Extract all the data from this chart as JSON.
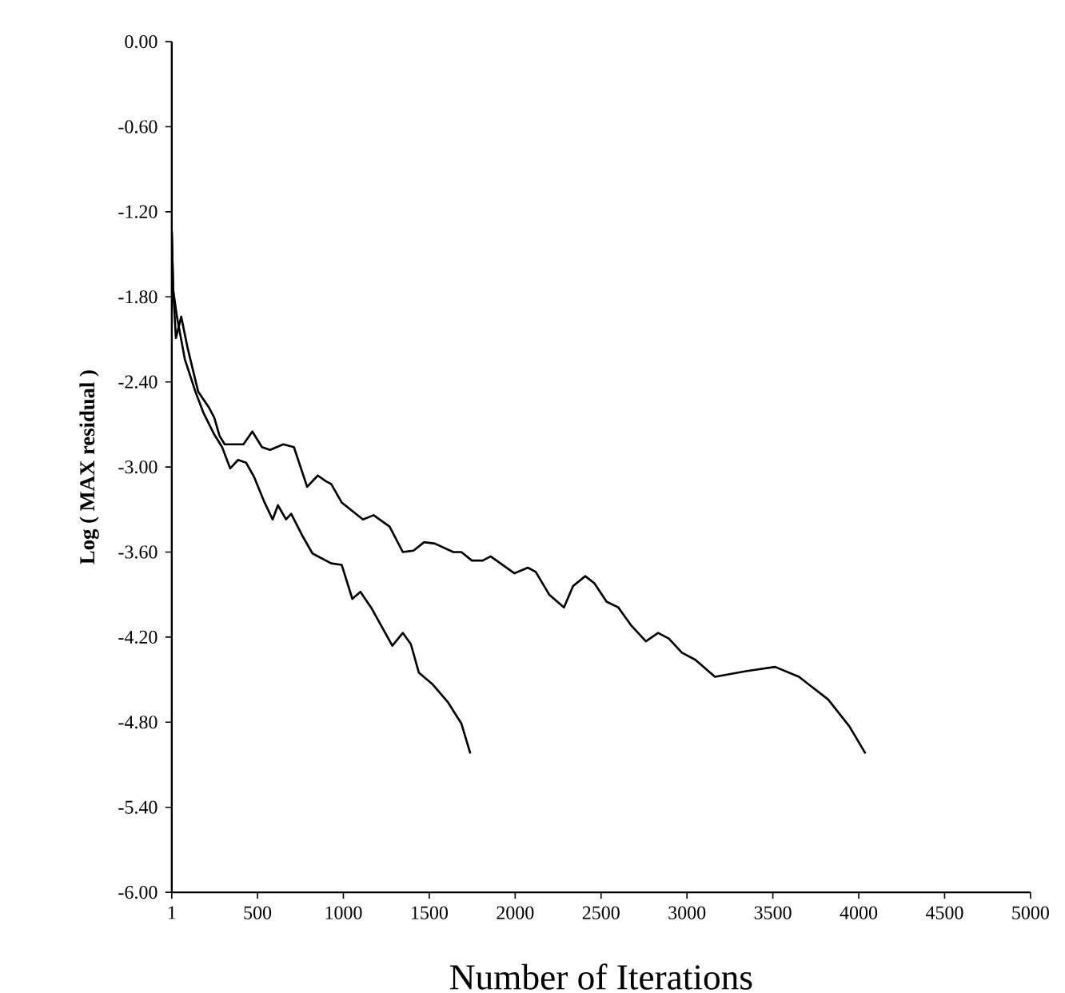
{
  "chart_data": {
    "type": "line",
    "xlabel": "Number of Iterations",
    "ylabel": "Log ( MAX residual )",
    "xlim": [
      1,
      5000
    ],
    "ylim": [
      -6,
      0
    ],
    "xticks": [
      1,
      500,
      1000,
      1500,
      2000,
      2500,
      3000,
      3500,
      4000,
      4500,
      5000
    ],
    "yticks": [
      {
        "value": 0,
        "label": "0.00"
      },
      {
        "value": -0.6,
        "label": "-0.60"
      },
      {
        "value": -1.2,
        "label": "-1.20"
      },
      {
        "value": -1.8,
        "label": "-1.80"
      },
      {
        "value": -2.4,
        "label": "-2.40"
      },
      {
        "value": -3.0,
        "label": "-3.00"
      },
      {
        "value": -3.6,
        "label": "-3.60"
      },
      {
        "value": -4.2,
        "label": "-4.20"
      },
      {
        "value": -4.8,
        "label": "-4.80"
      },
      {
        "value": -5.4,
        "label": "-5.40"
      },
      {
        "value": -6.0,
        "label": "-6.00"
      }
    ],
    "grid": false,
    "legend": false,
    "marker": "none",
    "line_style": "solid",
    "series": [
      {
        "color": "#000000",
        "x": [
          1,
          9,
          25,
          56,
          93,
          155,
          217,
          248,
          279,
          309,
          371,
          418,
          470,
          526,
          573,
          650,
          712,
          789,
          851,
          898,
          929,
          990,
          1114,
          1176,
          1269,
          1346,
          1408,
          1470,
          1532,
          1640,
          1687,
          1748,
          1811,
          1857,
          1996,
          2074,
          2120,
          2198,
          2284,
          2337,
          2408,
          2461,
          2532,
          2600,
          2677,
          2761,
          2832,
          2894,
          2971,
          3049,
          3163,
          3343,
          3513,
          3652,
          3822,
          3946,
          4039
        ],
        "values": [
          -1.34,
          -1.75,
          -2.09,
          -1.94,
          -2.16,
          -2.47,
          -2.58,
          -2.65,
          -2.78,
          -2.84,
          -2.84,
          -2.84,
          -2.75,
          -2.86,
          -2.88,
          -2.84,
          -2.86,
          -3.14,
          -3.06,
          -3.1,
          -3.12,
          -3.25,
          -3.37,
          -3.34,
          -3.42,
          -3.6,
          -3.59,
          -3.53,
          -3.54,
          -3.6,
          -3.6,
          -3.66,
          -3.66,
          -3.63,
          -3.75,
          -3.71,
          -3.74,
          -3.9,
          -3.99,
          -3.84,
          -3.77,
          -3.82,
          -3.95,
          -3.99,
          -4.12,
          -4.23,
          -4.17,
          -4.21,
          -4.31,
          -4.36,
          -4.48,
          -4.44,
          -4.41,
          -4.48,
          -4.64,
          -4.83,
          -5.02
        ]
      },
      {
        "color": "#000000",
        "x": [
          1,
          9,
          31,
          77,
          139,
          186,
          248,
          294,
          341,
          387,
          434,
          480,
          541,
          588,
          619,
          666,
          696,
          759,
          820,
          929,
          990,
          1052,
          1099,
          1161,
          1285,
          1346,
          1393,
          1439,
          1517,
          1609,
          1687,
          1739
        ],
        "values": [
          -1.34,
          -1.75,
          -1.94,
          -2.24,
          -2.47,
          -2.62,
          -2.77,
          -2.86,
          -3.01,
          -2.95,
          -2.97,
          -3.07,
          -3.25,
          -3.37,
          -3.27,
          -3.37,
          -3.33,
          -3.48,
          -3.61,
          -3.68,
          -3.69,
          -3.93,
          -3.88,
          -3.99,
          -4.26,
          -4.17,
          -4.25,
          -4.45,
          -4.53,
          -4.66,
          -4.81,
          -5.02
        ]
      }
    ]
  }
}
